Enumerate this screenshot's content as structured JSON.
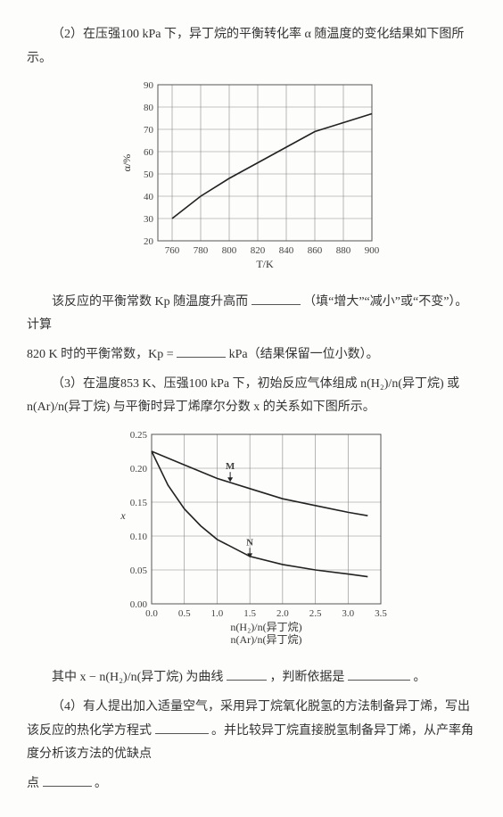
{
  "q2": {
    "intro": "（2）在压强100 kPa 下，异丁烷的平衡转化率 α 随温度的变化结果如下图所示。",
    "chart": {
      "type": "line",
      "xlim": [
        750,
        900
      ],
      "xticks": [
        760,
        780,
        800,
        820,
        840,
        860,
        880,
        900
      ],
      "ylim": [
        20,
        90
      ],
      "yticks": [
        20,
        30,
        40,
        50,
        60,
        70,
        80,
        90
      ],
      "xlabel": "T/K",
      "ylabel": "α/%",
      "data": [
        [
          760,
          30
        ],
        [
          780,
          40
        ],
        [
          800,
          48
        ],
        [
          820,
          55
        ],
        [
          840,
          62
        ],
        [
          860,
          69
        ],
        [
          880,
          73
        ],
        [
          900,
          77
        ]
      ],
      "grid_color": "#888",
      "line_color": "#222",
      "bg": "#fdfdfc",
      "label_fontsize": 11
    },
    "text_a": "该反应的平衡常数 Kp 随温度升高而",
    "text_b": "（填“增大”“减小”或“不变”）。计算",
    "text_c": "820 K 时的平衡常数，Kp =",
    "text_d": "kPa（结果保留一位小数）。"
  },
  "q3": {
    "intro": "（3）在温度853 K、压强100 kPa 下，初始反应气体组成 n(H₂)/n(异丁烷) 或 n(Ar)/n(异丁烷) 与平衡时异丁烯摩尔分数 x 的关系如下图所示。",
    "chart": {
      "type": "line",
      "xlim": [
        0,
        3.5
      ],
      "xticks": [
        0.0,
        0.5,
        1.0,
        1.5,
        2.0,
        2.5,
        3.0,
        3.5
      ],
      "ylim": [
        0,
        0.25
      ],
      "yticks": [
        0.0,
        0.05,
        0.1,
        0.15,
        0.2,
        0.25
      ],
      "xlabel_top": "n(H₂)/n(异丁烷)",
      "xlabel_bot": "n(Ar)/n(异丁烷)",
      "ylabel": "x",
      "series": {
        "M": {
          "label": "M",
          "arrow_at": [
            1.2,
            0.18
          ],
          "data": [
            [
              0,
              0.225
            ],
            [
              0.5,
              0.205
            ],
            [
              1.0,
              0.185
            ],
            [
              1.5,
              0.17
            ],
            [
              2.0,
              0.155
            ],
            [
              2.5,
              0.145
            ],
            [
              3.0,
              0.135
            ],
            [
              3.3,
              0.13
            ]
          ]
        },
        "N": {
          "label": "N",
          "arrow_at": [
            1.5,
            0.068
          ],
          "data": [
            [
              0,
              0.225
            ],
            [
              0.25,
              0.175
            ],
            [
              0.5,
              0.14
            ],
            [
              0.75,
              0.115
            ],
            [
              1.0,
              0.095
            ],
            [
              1.5,
              0.07
            ],
            [
              2.0,
              0.058
            ],
            [
              2.5,
              0.05
            ],
            [
              3.0,
              0.044
            ],
            [
              3.3,
              0.04
            ]
          ]
        }
      },
      "grid_color": "#888",
      "line_color": "#222",
      "bg": "#fdfdfc",
      "label_fontsize": 11
    },
    "text_a": "其中 x − n(H₂)/n(异丁烷) 为曲线",
    "text_b": "，判断依据是",
    "text_c": "。"
  },
  "q4": {
    "text_a": "（4）有人提出加入适量空气，采用异丁烷氧化脱氢的方法制备异丁烯，写出该反应的热化学方程式",
    "text_b": "。并比较异丁烷直接脱氢制备异丁烯，从产率角度分析该方法的优缺点",
    "text_c": "。"
  }
}
